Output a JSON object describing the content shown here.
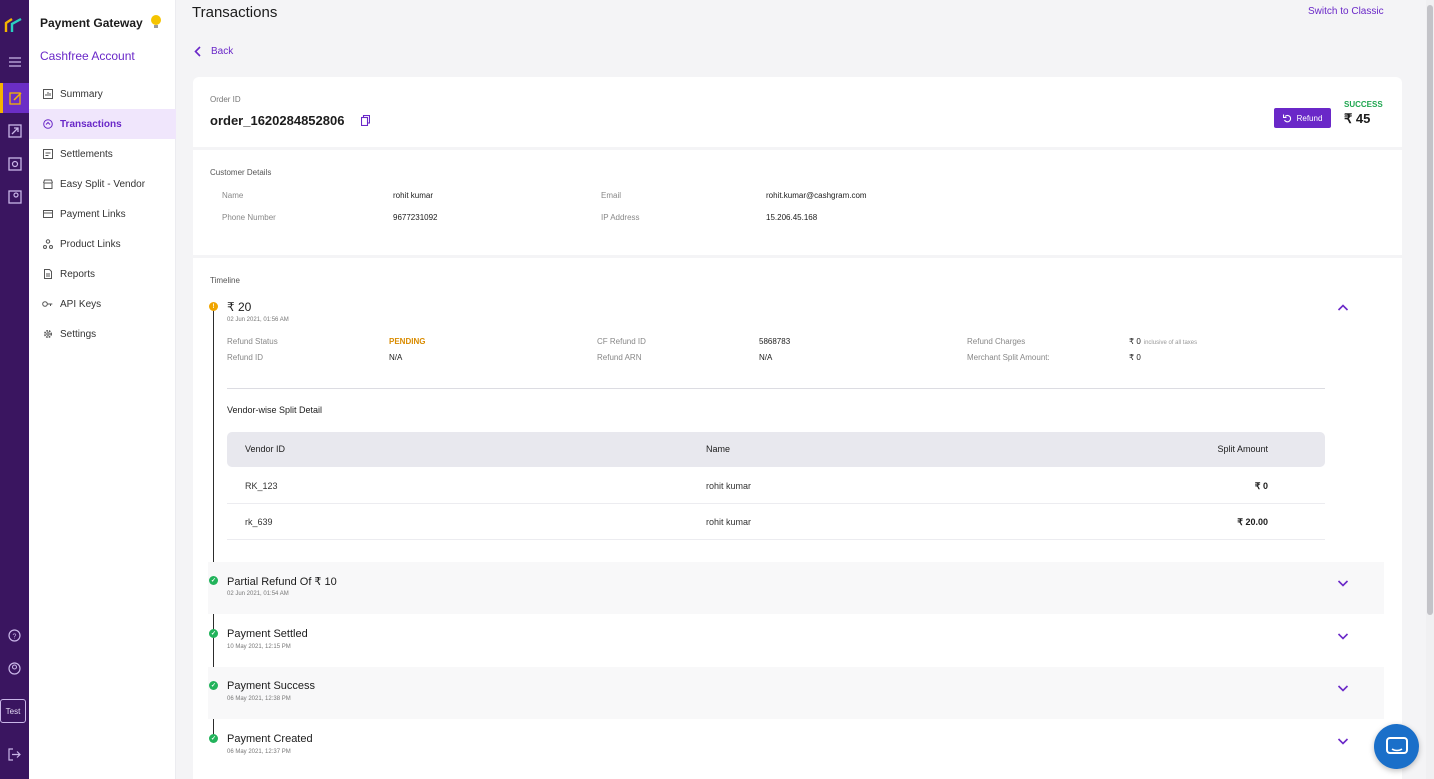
{
  "sidebar": {
    "title": "Payment Gateway",
    "account": "Cashfree Account",
    "items": [
      {
        "label": "Summary"
      },
      {
        "label": "Transactions"
      },
      {
        "label": "Settlements"
      },
      {
        "label": "Easy Split - Vendor"
      },
      {
        "label": "Payment Links"
      },
      {
        "label": "Product Links"
      },
      {
        "label": "Reports"
      },
      {
        "label": "API Keys"
      },
      {
        "label": "Settings"
      }
    ],
    "active_index": 1
  },
  "rail": {
    "env_label": "Test"
  },
  "header": {
    "title": "Transactions",
    "switch_label": "Switch to Classic",
    "back_label": "Back"
  },
  "order": {
    "id_label": "Order ID",
    "id": "order_1620284852806",
    "refund_label": "Refund",
    "status": "SUCCESS",
    "amount": "₹ 45"
  },
  "customer": {
    "section_label": "Customer Details",
    "name_label": "Name",
    "name": "rohit kumar",
    "phone_label": "Phone Number",
    "phone": "9677231092",
    "email_label": "Email",
    "email": "rohit.kumar@cashgram.com",
    "ip_label": "IP Address",
    "ip": "15.206.45.168"
  },
  "timeline": {
    "section_label": "Timeline",
    "refund": {
      "title": "₹ 20",
      "date": "02 Jun 2021, 01:56 AM",
      "status_label": "Refund Status",
      "status": "PENDING",
      "refund_id_label": "Refund ID",
      "refund_id": "N/A",
      "cf_refund_id_label": "CF Refund ID",
      "cf_refund_id": "5868783",
      "refund_arn_label": "Refund ARN",
      "refund_arn": "N/A",
      "charges_label": "Refund Charges",
      "charges": "₹ 0",
      "charges_note": "inclusive of all taxes",
      "merchant_split_label": "Merchant Split Amount:",
      "merchant_split": "₹ 0",
      "vendor_title": "Vendor-wise Split Detail",
      "columns": [
        "Vendor ID",
        "Name",
        "Split Amount"
      ],
      "rows": [
        {
          "vendor_id": "RK_123",
          "name": "rohit kumar",
          "amount": "₹ 0"
        },
        {
          "vendor_id": "rk_639",
          "name": "rohit kumar",
          "amount": "₹ 20.00"
        }
      ]
    },
    "events": [
      {
        "title": "Partial Refund Of ₹ 10",
        "date": "02 Jun 2021, 01:54 AM"
      },
      {
        "title": "Payment Settled",
        "date": "10 May 2021, 12:15 PM"
      },
      {
        "title": "Payment Success",
        "date": "06 May 2021, 12:38 PM"
      },
      {
        "title": "Payment Created",
        "date": "06 May 2021, 12:37 PM"
      }
    ]
  },
  "colors": {
    "brand": "#6a28c8",
    "rail": "#3a1560",
    "success": "#1fa650",
    "pending": "#d98b00"
  }
}
